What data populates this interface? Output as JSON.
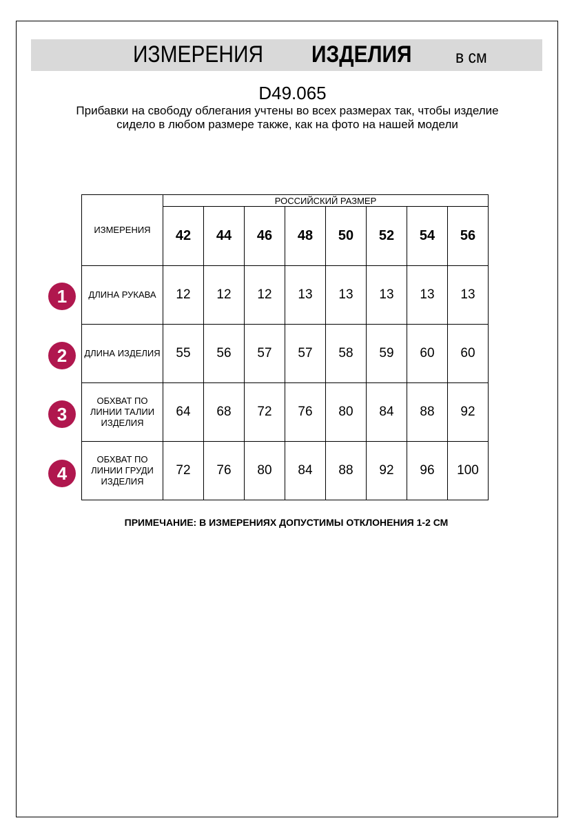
{
  "header": {
    "title_regular": "ИЗМЕРЕНИЯ",
    "title_bold": "ИЗДЕЛИЯ",
    "unit": "в см"
  },
  "product_code": "D49.065",
  "description": "Прибавки на свободу облегания учтены во всех размерах так, чтобы изделие сидело в любом размере также, как на фото на нашей модели",
  "table": {
    "measure_header": "ИЗМЕРЕНИЯ",
    "size_group_header": "РОССИЙСКИЙ РАЗМЕР",
    "sizes": [
      "42",
      "44",
      "46",
      "48",
      "50",
      "52",
      "54",
      "56"
    ],
    "rows": [
      {
        "number": "1",
        "label": "ДЛИНА РУКАВА",
        "values": [
          "12",
          "12",
          "12",
          "13",
          "13",
          "13",
          "13",
          "13"
        ]
      },
      {
        "number": "2",
        "label": "ДЛИНА ИЗДЕЛИЯ",
        "values": [
          "55",
          "56",
          "57",
          "57",
          "58",
          "59",
          "60",
          "60"
        ]
      },
      {
        "number": "3",
        "label": "ОБХВАТ ПО ЛИНИИ ТАЛИИ ИЗДЕЛИЯ",
        "values": [
          "64",
          "68",
          "72",
          "76",
          "80",
          "84",
          "88",
          "92"
        ]
      },
      {
        "number": "4",
        "label": "ОБХВАТ ПО ЛИНИИ ГРУДИ ИЗДЕЛИЯ",
        "values": [
          "72",
          "76",
          "80",
          "84",
          "88",
          "92",
          "96",
          "100"
        ]
      }
    ]
  },
  "note": "ПРИМЕЧАНИЕ: В ИЗМЕРЕНИЯХ ДОПУСТИМЫ ОТКЛОНЕНИЯ 1-2 СМ",
  "colors": {
    "badge": "#b0174e",
    "banner": "#d9d9d9"
  }
}
